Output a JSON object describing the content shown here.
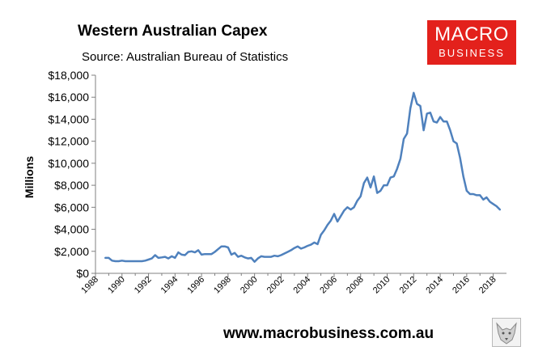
{
  "header": {
    "title": "Western Australian Capex",
    "subtitle": "Source: Australian Bureau of Statistics"
  },
  "logo": {
    "line1": "MACRO",
    "line2": "BUSINESS"
  },
  "footer": {
    "url": "www.macrobusiness.com.au"
  },
  "colors": {
    "line": "#4f81bd",
    "logo_bg": "#e3211c",
    "axis": "#808080"
  },
  "icons": {
    "fox": "fox-emblem-icon"
  },
  "chart_data": {
    "type": "line",
    "title": "Western Australian Capex",
    "subtitle": "Source: Australian Bureau of Statistics",
    "xlabel": "",
    "ylabel": "Millions",
    "xlim": [
      1988,
      2019
    ],
    "ylim": [
      0,
      18000
    ],
    "grid": false,
    "legend": "none",
    "x_ticks": [
      "1988",
      "1990",
      "1992",
      "1994",
      "1996",
      "1998",
      "2000",
      "2002",
      "2004",
      "2006",
      "2008",
      "2010",
      "2012",
      "2014",
      "2016",
      "2018"
    ],
    "y_ticks": [
      "$0",
      "$2,000",
      "$4,000",
      "$6,000",
      "$8,000",
      "$10,000",
      "$12,000",
      "$14,000",
      "$16,000",
      "$18,000"
    ],
    "series": [
      {
        "x": [
          1988.75,
          1989.0,
          1989.25,
          1989.5,
          1989.75,
          1990.0,
          1990.25,
          1990.5,
          1990.75,
          1991.0,
          1991.25,
          1991.5,
          1991.75,
          1992.0,
          1992.25,
          1992.5,
          1992.75,
          1993.0,
          1993.25,
          1993.5,
          1993.75,
          1994.0,
          1994.25,
          1994.5,
          1994.75,
          1995.0,
          1995.25,
          1995.5,
          1995.75,
          1996.0,
          1996.25,
          1996.5,
          1996.75,
          1997.0,
          1997.25,
          1997.5,
          1997.75,
          1998.0,
          1998.25,
          1998.5,
          1998.75,
          1999.0,
          1999.25,
          1999.5,
          1999.75,
          2000.0,
          2000.25,
          2000.5,
          2000.75,
          2001.0,
          2001.25,
          2001.5,
          2001.75,
          2002.0,
          2002.25,
          2002.5,
          2002.75,
          2003.0,
          2003.25,
          2003.5,
          2003.75,
          2004.0,
          2004.25,
          2004.5,
          2004.75,
          2005.0,
          2005.25,
          2005.5,
          2005.75,
          2006.0,
          2006.25,
          2006.5,
          2006.75,
          2007.0,
          2007.25,
          2007.5,
          2007.75,
          2008.0,
          2008.25,
          2008.5,
          2008.75,
          2009.0,
          2009.25,
          2009.5,
          2009.75,
          2010.0,
          2010.25,
          2010.5,
          2010.75,
          2011.0,
          2011.25,
          2011.5,
          2011.75,
          2012.0,
          2012.25,
          2012.5,
          2012.75,
          2013.0,
          2013.25,
          2013.5,
          2013.75,
          2014.0,
          2014.25,
          2014.5,
          2014.75,
          2015.0,
          2015.25,
          2015.5,
          2015.75,
          2016.0,
          2016.25,
          2016.5,
          2016.75,
          2017.0,
          2017.25,
          2017.5,
          2017.75,
          2018.0,
          2018.25,
          2018.5
        ],
        "y": [
          1400,
          1400,
          1150,
          1100,
          1100,
          1150,
          1100,
          1100,
          1100,
          1100,
          1100,
          1100,
          1150,
          1250,
          1350,
          1650,
          1400,
          1450,
          1500,
          1350,
          1550,
          1400,
          1900,
          1700,
          1650,
          1950,
          2000,
          1900,
          2100,
          1700,
          1750,
          1750,
          1750,
          1950,
          2200,
          2450,
          2450,
          2350,
          1700,
          1850,
          1500,
          1600,
          1450,
          1350,
          1400,
          1050,
          1350,
          1550,
          1500,
          1500,
          1500,
          1600,
          1550,
          1650,
          1800,
          1950,
          2100,
          2300,
          2450,
          2250,
          2350,
          2500,
          2600,
          2800,
          2650,
          3500,
          3900,
          4400,
          4800,
          5400,
          4700,
          5200,
          5700,
          6000,
          5800,
          6000,
          6600,
          7000,
          8200,
          8700,
          7800,
          8800,
          7300,
          7500,
          8000,
          8000,
          8700,
          8800,
          9500,
          10400,
          12200,
          12700,
          15000,
          16400,
          15400,
          15200,
          13000,
          14500,
          14600,
          13800,
          13700,
          14200,
          13800,
          13800,
          13000,
          12000,
          11800,
          10500,
          8800,
          7500,
          7200,
          7200,
          7100,
          7100,
          6700,
          6900,
          6500,
          6300,
          6100,
          5800
        ]
      }
    ]
  }
}
